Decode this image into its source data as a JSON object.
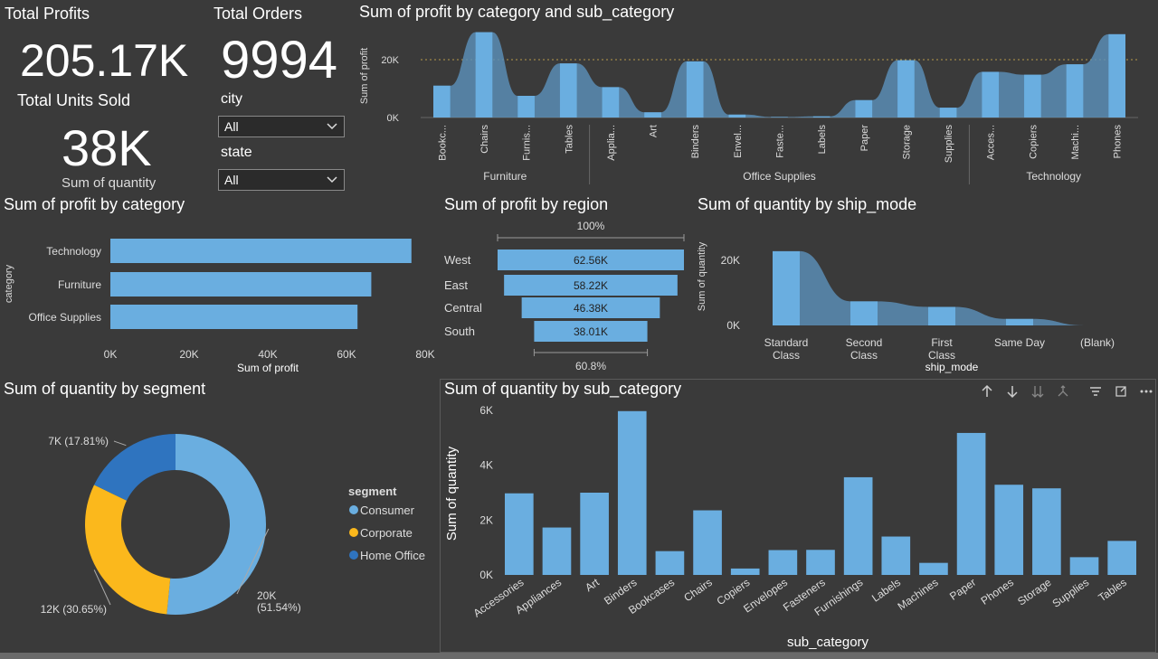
{
  "kpis": {
    "total_profits": {
      "label": "Total Profits",
      "value": "205.17K"
    },
    "total_orders": {
      "label": "Total Orders",
      "value": "9994"
    },
    "total_units": {
      "label": "Total Units Sold",
      "value": "38K",
      "sublabel": "Sum of quantity"
    }
  },
  "filters": {
    "city": {
      "label": "city",
      "value": "All"
    },
    "state": {
      "label": "state",
      "value": "All"
    }
  },
  "colors": {
    "bar": "#6aaee0",
    "bar_dark": "#5a8db5",
    "corporate": "#fbb81c",
    "home_office": "#2f74bf",
    "background": "#3a3a3a"
  },
  "chart_data": [
    {
      "id": "subcat_profit",
      "type": "area",
      "title": "Sum of profit by category and sub_category",
      "ylabel": "Sum of profit",
      "xlabel": "",
      "yticks": [
        "0K",
        "20K"
      ],
      "ylim": [
        0,
        30000
      ],
      "groups": [
        {
          "name": "Furniture",
          "categories": [
            "Bookc...",
            "Chairs",
            "Furnis...",
            "Tables"
          ],
          "values": [
            11000,
            29500,
            7500,
            18700
          ]
        },
        {
          "name": "Office Supplies",
          "categories": [
            "Applia...",
            "Art",
            "Binders",
            "Envel...",
            "Faste...",
            "Labels",
            "Paper",
            "Storage",
            "Supplies"
          ],
          "values": [
            10500,
            1800,
            19400,
            1000,
            200,
            400,
            6000,
            19800,
            3400
          ]
        },
        {
          "name": "Technology",
          "categories": [
            "Acces...",
            "Copiers",
            "Machi...",
            "Phones"
          ],
          "values": [
            15800,
            14800,
            18400,
            28800
          ]
        }
      ]
    },
    {
      "id": "profit_category",
      "type": "bar",
      "title": "Sum of profit by category",
      "xlabel": "Sum of profit",
      "ylabel": "category",
      "categories": [
        "Technology",
        "Furniture",
        "Office Supplies"
      ],
      "values": [
        76500,
        66300,
        62800
      ],
      "xticks": [
        "0K",
        "20K",
        "40K",
        "60K",
        "80K"
      ],
      "xlim": [
        0,
        80000
      ]
    },
    {
      "id": "profit_region",
      "type": "bar",
      "title": "Sum of profit by region",
      "categories": [
        "West",
        "East",
        "Central",
        "South"
      ],
      "values": [
        62560,
        58220,
        46380,
        38010
      ],
      "labels": [
        "62.56K",
        "58.22K",
        "46.38K",
        "38.01K"
      ],
      "top_label": "100%",
      "bottom_label": "60.8%"
    },
    {
      "id": "qty_shipmode",
      "type": "area",
      "title": "Sum of quantity by ship_mode",
      "xlabel": "ship_mode",
      "ylabel": "Sum of quantity",
      "categories": [
        "Standard Class",
        "Second Class",
        "First Class",
        "Same Day",
        "(Blank)"
      ],
      "values": [
        22800,
        7400,
        5700,
        2000,
        0
      ],
      "yticks": [
        "0K",
        "20K"
      ],
      "ylim": [
        0,
        25000
      ]
    },
    {
      "id": "qty_segment",
      "type": "pie",
      "title": "Sum of quantity by segment",
      "legend_title": "segment",
      "legend_position": "right",
      "slices": [
        {
          "name": "Consumer",
          "value": 51.54,
          "label": "20K (51.54%)",
          "color": "#6aaee0"
        },
        {
          "name": "Corporate",
          "value": 30.65,
          "label": "12K (30.65%)",
          "color": "#fbb81c"
        },
        {
          "name": "Home Office",
          "value": 17.81,
          "label": "7K (17.81%)",
          "color": "#2f74bf"
        }
      ]
    },
    {
      "id": "qty_subcat",
      "type": "bar",
      "title": "Sum of quantity by sub_category",
      "xlabel": "sub_category",
      "ylabel": "Sum of quantity",
      "categories": [
        "Accessories",
        "Appliances",
        "Art",
        "Binders",
        "Bookcases",
        "Chairs",
        "Copiers",
        "Envelopes",
        "Fasteners",
        "Furnishings",
        "Labels",
        "Machines",
        "Paper",
        "Phones",
        "Storage",
        "Supplies",
        "Tables"
      ],
      "values": [
        2976,
        1729,
        3000,
        5974,
        868,
        2356,
        234,
        906,
        914,
        3563,
        1400,
        440,
        5178,
        3289,
        3158,
        647,
        1241
      ],
      "yticks": [
        "0K",
        "2K",
        "4K",
        "6K"
      ],
      "ylim": [
        0,
        6000
      ]
    }
  ]
}
